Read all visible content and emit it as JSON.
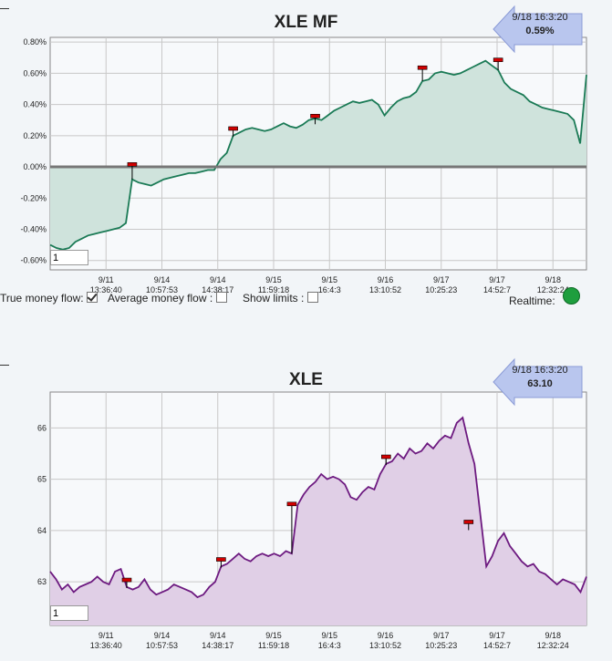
{
  "charts": {
    "mf": {
      "title": "XLE MF",
      "tooltip": {
        "time": "9/18 16:3:20",
        "value": "0.59%"
      },
      "input_value": "1"
    },
    "price": {
      "title": "XLE",
      "tooltip": {
        "time": "9/18 16:3:20",
        "value": "63.10"
      },
      "input_value": "1"
    }
  },
  "controls": {
    "true_money_flow": {
      "label": "True money flow:",
      "checked": true
    },
    "average_money_flow": {
      "label": "Average money flow :",
      "checked": false
    },
    "show_limits": {
      "label": "Show limits :",
      "checked": false
    },
    "realtime": {
      "label": "Realtime:",
      "status_color": "#1e9e3e"
    }
  },
  "colors": {
    "mf_line": "#1a7a55",
    "mf_fill": "#cfe3dc",
    "price_line": "#6d1a80",
    "price_fill": "#e0cfe6",
    "marker": "#d00000"
  },
  "chart_data": [
    {
      "type": "area",
      "title": "XLE MF",
      "x_ticks": [
        {
          "date": "9/11",
          "time": "13:36:40"
        },
        {
          "date": "9/14",
          "time": "10:57:53"
        },
        {
          "date": "9/14",
          "time": "14:38:17"
        },
        {
          "date": "9/15",
          "time": "11:59:18"
        },
        {
          "date": "9/15",
          "time": "16:4:3"
        },
        {
          "date": "9/16",
          "time": "13:10:52"
        },
        {
          "date": "9/17",
          "time": "10:25:23"
        },
        {
          "date": "9/17",
          "time": "14:52:7"
        },
        {
          "date": "9/18",
          "time": "12:32:24"
        }
      ],
      "y_ticks": [
        "0.80%",
        "0.60%",
        "0.40%",
        "0.20%",
        "0.00%",
        "-0.20%",
        "-0.40%",
        "-0.60%"
      ],
      "ylim": [
        -0.66,
        0.83
      ],
      "baseline": 0,
      "grid": true,
      "series": [
        {
          "values": [
            -0.5,
            -0.52,
            -0.53,
            -0.52,
            -0.48,
            -0.46,
            -0.44,
            -0.43,
            -0.42,
            -0.41,
            -0.4,
            -0.39,
            -0.36,
            -0.08,
            -0.1,
            -0.11,
            -0.12,
            -0.1,
            -0.08,
            -0.07,
            -0.06,
            -0.05,
            -0.04,
            -0.04,
            -0.03,
            -0.02,
            -0.02,
            0.05,
            0.09,
            0.2,
            0.22,
            0.24,
            0.25,
            0.24,
            0.23,
            0.24,
            0.26,
            0.28,
            0.26,
            0.25,
            0.27,
            0.3,
            0.31,
            0.3,
            0.33,
            0.36,
            0.38,
            0.4,
            0.42,
            0.41,
            0.42,
            0.43,
            0.4,
            0.33,
            0.38,
            0.42,
            0.44,
            0.45,
            0.48,
            0.55,
            0.56,
            0.6,
            0.61,
            0.6,
            0.59,
            0.6,
            0.62,
            0.64,
            0.66,
            0.68,
            0.65,
            0.62,
            0.54,
            0.5,
            0.48,
            0.46,
            0.42,
            0.4,
            0.38,
            0.37,
            0.36,
            0.35,
            0.34,
            0.3,
            0.15,
            0.59
          ]
        }
      ],
      "markers": [
        -0.5,
        -0.53,
        -0.36,
        -0.1,
        0.24,
        0.26,
        0.25,
        0.3,
        0.26,
        0.29,
        0.31,
        0.41,
        0.42,
        0.61,
        0.44,
        0.56,
        0.52,
        0.68,
        0.55,
        0.46,
        0.4,
        0.34,
        0.3,
        0.2,
        0.59
      ],
      "annotations": [
        {
          "x_index": 13,
          "y": 0.01
        },
        {
          "x_index": 29,
          "y": 0.24
        },
        {
          "x_index": 42,
          "y": 0.32
        },
        {
          "x_index": 59,
          "y": 0.63
        },
        {
          "x_index": 71,
          "y": 0.68
        }
      ]
    },
    {
      "type": "area",
      "title": "XLE",
      "x_ticks": [
        {
          "date": "9/11",
          "time": "13:36:40"
        },
        {
          "date": "9/14",
          "time": "10:57:53"
        },
        {
          "date": "9/14",
          "time": "14:38:17"
        },
        {
          "date": "9/15",
          "time": "11:59:18"
        },
        {
          "date": "9/15",
          "time": "16:4:3"
        },
        {
          "date": "9/16",
          "time": "13:10:52"
        },
        {
          "date": "9/17",
          "time": "10:25:23"
        },
        {
          "date": "9/17",
          "time": "14:52:7"
        },
        {
          "date": "9/18",
          "time": "12:32:24"
        }
      ],
      "y_ticks": [
        "66",
        "65",
        "64",
        "63"
      ],
      "ylim": [
        62.15,
        66.7
      ],
      "grid": true,
      "series": [
        {
          "values": [
            63.2,
            63.05,
            62.85,
            62.95,
            62.8,
            62.9,
            62.95,
            63.0,
            63.1,
            63.0,
            62.95,
            63.2,
            63.25,
            62.9,
            62.85,
            62.9,
            63.05,
            62.85,
            62.75,
            62.8,
            62.85,
            62.95,
            62.9,
            62.85,
            62.8,
            62.7,
            62.75,
            62.9,
            63.0,
            63.3,
            63.35,
            63.45,
            63.55,
            63.45,
            63.4,
            63.5,
            63.55,
            63.5,
            63.55,
            63.5,
            63.6,
            63.55,
            64.5,
            64.7,
            64.85,
            64.95,
            65.1,
            65.0,
            65.05,
            65.0,
            64.9,
            64.65,
            64.6,
            64.75,
            64.85,
            64.8,
            65.1,
            65.3,
            65.35,
            65.5,
            65.4,
            65.6,
            65.5,
            65.55,
            65.7,
            65.6,
            65.75,
            65.85,
            65.8,
            66.1,
            66.2,
            65.7,
            65.3,
            64.3,
            63.3,
            63.5,
            63.8,
            63.95,
            63.7,
            63.55,
            63.4,
            63.3,
            63.35,
            63.2,
            63.15,
            63.05,
            62.95,
            63.05,
            63.0,
            62.95,
            62.8,
            63.1
          ]
        }
      ],
      "annotations": [
        {
          "x_index": 13,
          "y": 63.02
        },
        {
          "x_index": 29,
          "y": 63.42
        },
        {
          "x_index": 41,
          "y": 64.5
        },
        {
          "x_index": 57,
          "y": 65.42
        },
        {
          "x_index": 71,
          "y": 64.15
        }
      ]
    }
  ]
}
